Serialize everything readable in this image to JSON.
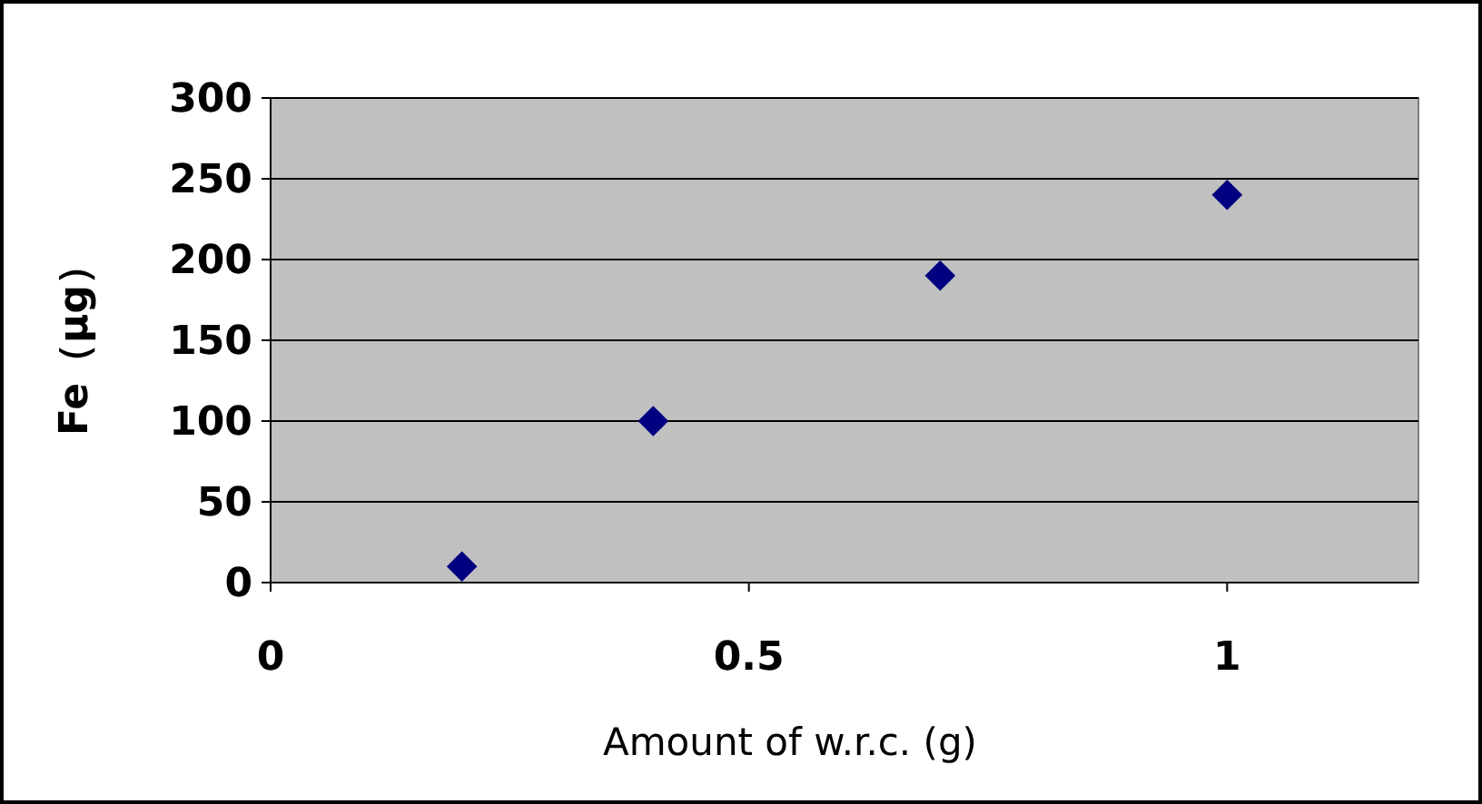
{
  "chart_data": {
    "type": "scatter",
    "xlabel": "Amount of w.r.c. (g)",
    "ylabel": "Fe（μg）",
    "x": [
      0.2,
      0.4,
      0.7,
      1.0
    ],
    "series": [
      {
        "color": "#000080",
        "values": [
          10,
          100,
          190,
          240
        ]
      }
    ],
    "xlim": [
      0,
      1.2
    ],
    "xticks": [
      0,
      0.5,
      1
    ],
    "ylim": [
      0,
      300
    ],
    "yticks": [
      0,
      50,
      100,
      150,
      200,
      250,
      300
    ],
    "grid": "y",
    "marker": "diamond"
  }
}
